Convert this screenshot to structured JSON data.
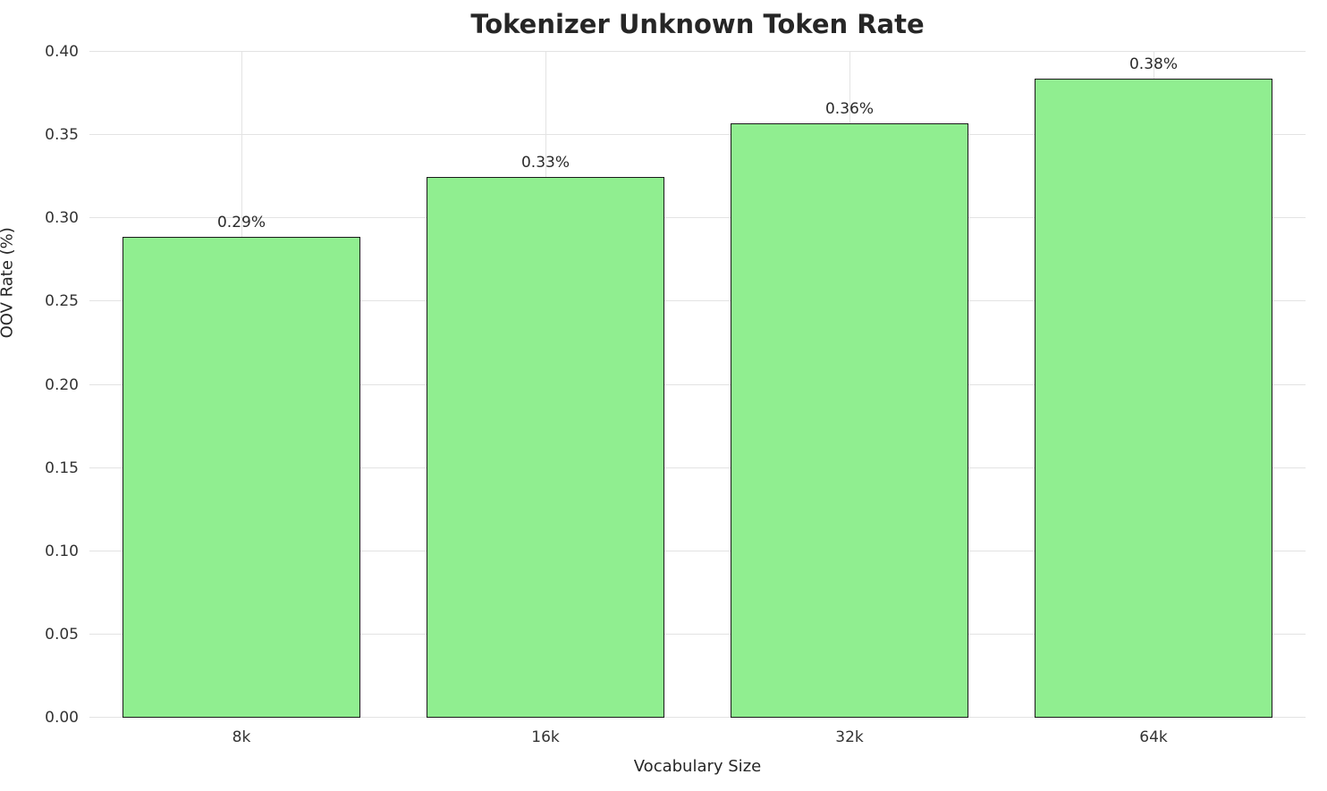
{
  "chart_data": {
    "type": "bar",
    "title": "Tokenizer Unknown Token Rate",
    "xlabel": "Vocabulary Size",
    "ylabel": "OOV Rate (%)",
    "categories": [
      "8k",
      "16k",
      "32k",
      "64k"
    ],
    "values": [
      0.289,
      0.325,
      0.357,
      0.384
    ],
    "bar_labels": [
      "0.29%",
      "0.33%",
      "0.36%",
      "0.38%"
    ],
    "ylim": [
      0.0,
      0.4
    ],
    "yticks": [
      0.0,
      0.05,
      0.1,
      0.15,
      0.2,
      0.25,
      0.3,
      0.35,
      0.4
    ],
    "ytick_labels": [
      "0.00",
      "0.05",
      "0.10",
      "0.15",
      "0.20",
      "0.25",
      "0.30",
      "0.35",
      "0.40"
    ],
    "grid": true,
    "legend": null,
    "bar_color": "#90ee90",
    "bar_edge_color": "#1a1a1a",
    "grid_color": "#e3e3e3",
    "bar_width_ratio": 0.78
  }
}
